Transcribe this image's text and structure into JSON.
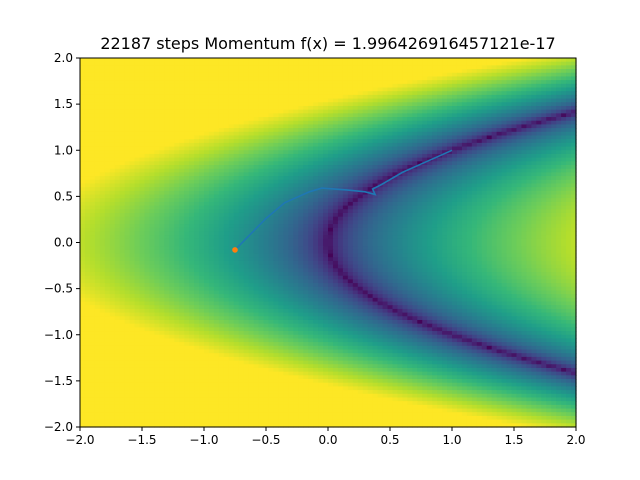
{
  "chart_data": {
    "type": "heatmap",
    "title": "22187 steps  Momentum f(x) = 1.996426916457121e-17",
    "xlabel": "",
    "ylabel": "",
    "xlim": [
      -2.0,
      2.0
    ],
    "ylim": [
      -2.0,
      2.0
    ],
    "colormap": "viridis",
    "grid": false,
    "x_ticks": [
      -2.0,
      -1.5,
      -1.0,
      -0.5,
      0.0,
      0.5,
      1.0,
      1.5,
      2.0
    ],
    "x_tick_labels": [
      "−2.0",
      "−1.5",
      "−1.0",
      "−0.5",
      "0.0",
      "0.5",
      "1.0",
      "1.5",
      "2.0"
    ],
    "y_ticks": [
      -2.0,
      -1.5,
      -1.0,
      -0.5,
      0.0,
      0.5,
      1.0,
      1.5,
      2.0
    ],
    "y_tick_labels": [
      "−2.0",
      "−1.5",
      "−1.0",
      "−0.5",
      "0.0",
      "0.5",
      "1.0",
      "1.5",
      "2.0"
    ],
    "series": [
      {
        "type": "line",
        "color": "#1f77b4",
        "x": [
          1.0,
          0.8,
          0.6,
          0.42,
          0.36,
          0.38,
          0.3,
          0.15,
          -0.05,
          -0.15,
          -0.35,
          -0.5,
          -0.75
        ],
        "y": [
          1.0,
          0.88,
          0.76,
          0.62,
          0.58,
          0.52,
          0.55,
          0.57,
          0.59,
          0.55,
          0.43,
          0.26,
          -0.08
        ]
      },
      {
        "type": "scatter",
        "color": "#ff7f0e",
        "x": [
          -0.75
        ],
        "y": [
          -0.08
        ]
      }
    ]
  }
}
